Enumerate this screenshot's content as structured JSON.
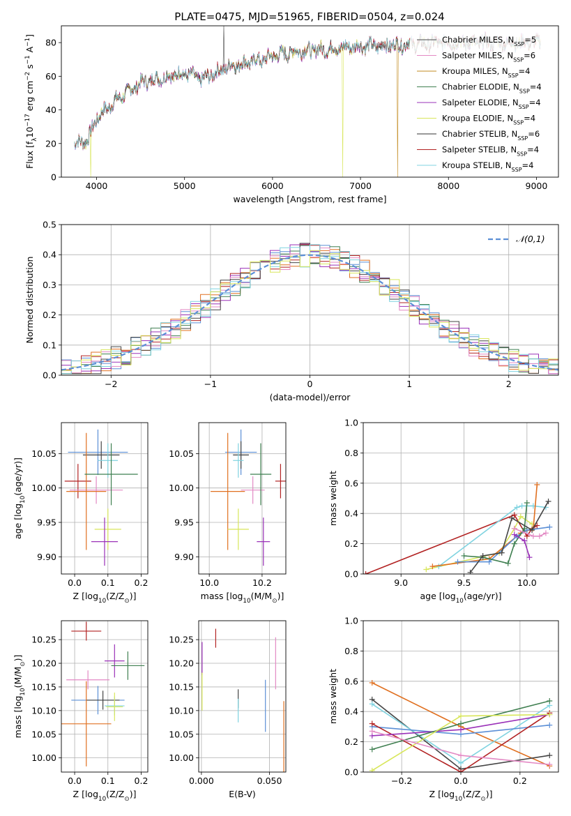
{
  "figure_title": "PLATE=0475, MJD=51965, FIBERID=0504, z=0.024",
  "colors": [
    "#4a4a4a",
    "#e389c4",
    "#c28a1f",
    "#3f7f50",
    "#9a30b8",
    "#d8e65a",
    "#333333",
    "#b22222",
    "#7fd3e0"
  ],
  "chart_data": [
    {
      "id": "spectrum",
      "type": "line",
      "title": "PLATE=0475, MJD=51965, FIBERID=0504, z=0.024",
      "xlabel": "wavelength [Angstrom, rest frame]",
      "ylabel_parts": [
        "Flux [f",
        "λ",
        "10",
        "−17",
        " erg cm",
        "−2",
        " s",
        "−1",
        " A",
        "−1",
        "]"
      ],
      "xlim": [
        3600,
        9250
      ],
      "ylim": [
        0,
        90
      ],
      "xticks": [
        4000,
        5000,
        6000,
        7000,
        8000,
        9000
      ],
      "yticks": [
        0,
        20,
        40,
        60,
        80
      ],
      "grid": false,
      "legend_position": "top-right",
      "series": [
        {
          "name": "Chabrier MILES",
          "nssp": "5",
          "color": "#4a4a4a"
        },
        {
          "name": "Salpeter MILES",
          "nssp": "6",
          "color": "#e389c4"
        },
        {
          "name": "Kroupa MILES",
          "nssp": "4",
          "color": "#c28a1f"
        },
        {
          "name": "Chabrier ELODIE",
          "nssp": "4",
          "color": "#3f7f50"
        },
        {
          "name": "Salpeter ELODIE",
          "nssp": "4",
          "color": "#9a30b8"
        },
        {
          "name": "Kroupa ELODIE",
          "nssp": "4",
          "color": "#d8e65a"
        },
        {
          "name": "Chabrier STELIB",
          "nssp": "6",
          "color": "#333333"
        },
        {
          "name": "Salpeter STELIB",
          "nssp": "4",
          "color": "#b22222"
        },
        {
          "name": "Kroupa STELIB",
          "nssp": "4",
          "color": "#7fd3e0"
        }
      ],
      "continuum_anchor_points": [
        [
          3750,
          20
        ],
        [
          3900,
          22
        ],
        [
          4000,
          35
        ],
        [
          4200,
          45
        ],
        [
          4500,
          56
        ],
        [
          4800,
          60
        ],
        [
          5000,
          62
        ],
        [
          5200,
          58
        ],
        [
          5500,
          66
        ],
        [
          5900,
          70
        ],
        [
          6000,
          72
        ],
        [
          6300,
          75
        ],
        [
          6600,
          76
        ],
        [
          7000,
          78
        ],
        [
          7200,
          78
        ],
        [
          7500,
          79
        ],
        [
          8000,
          80
        ],
        [
          8500,
          80
        ],
        [
          9000,
          80
        ]
      ],
      "dips": [
        [
          3934,
          1
        ],
        [
          5445,
          2
        ],
        [
          6800,
          3
        ],
        [
          7420,
          4
        ],
        [
          5175,
          5
        ],
        [
          5890,
          6
        ]
      ]
    },
    {
      "id": "residuals",
      "type": "histogram",
      "xlabel": "(data-model)/error",
      "ylabel": "Normed distribution",
      "xlim": [
        -2.5,
        2.5
      ],
      "ylim": [
        0,
        0.5
      ],
      "xticks": [
        -2,
        -1,
        0,
        1,
        2
      ],
      "yticks": [
        0.0,
        0.1,
        0.2,
        0.3,
        0.4,
        0.5
      ],
      "grid": true,
      "bin_width": 0.1,
      "reference_curve": {
        "name": "𝒩(0,1)",
        "mean": 0,
        "sigma": 1,
        "color": "#5b8fd6",
        "style": "dashed"
      },
      "legend_position": "top-right",
      "series_colors": [
        "#5b8fd6",
        "#e07020",
        "#3f7f50",
        "#b22222",
        "#9a30b8",
        "#e389c4",
        "#444444",
        "#7fd3e0",
        "#d8e65a"
      ]
    },
    {
      "id": "age_vs_Z",
      "type": "scatter",
      "xlabel_parts": [
        "Z [log",
        "10",
        "(Z/Z",
        "⊙",
        ")]"
      ],
      "ylabel_parts": [
        "age  [log",
        "10",
        "(age/yr)]"
      ],
      "xlim": [
        -0.04,
        0.22
      ],
      "ylim": [
        9.875,
        10.095
      ],
      "xticks": [
        0.0,
        0.1,
        0.2
      ],
      "yticks": [
        9.9,
        9.95,
        10.0,
        10.05
      ],
      "grid": true,
      "points": [
        {
          "x": 0.07,
          "y": 10.052,
          "xerr": 0.09,
          "yerr": 0.033,
          "color": "#5b8fd6"
        },
        {
          "x": 0.08,
          "y": 10.048,
          "xerr": 0.055,
          "yerr": 0.02,
          "color": "#444444"
        },
        {
          "x": 0.1,
          "y": 10.04,
          "xerr": 0.03,
          "yerr": 0.025,
          "color": "#7fd3e0"
        },
        {
          "x": 0.01,
          "y": 10.01,
          "xerr": 0.04,
          "yerr": 0.025,
          "color": "#b22222"
        },
        {
          "x": 0.065,
          "y": 9.997,
          "xerr": 0.08,
          "yerr": 0.02,
          "color": "#e389c4"
        },
        {
          "x": 0.035,
          "y": 9.995,
          "xerr": 0.06,
          "yerr": 0.085,
          "color": "#e07020"
        },
        {
          "x": 0.11,
          "y": 10.02,
          "xerr": 0.08,
          "yerr": 0.045,
          "color": "#3f7f50"
        },
        {
          "x": 0.1,
          "y": 9.94,
          "xerr": 0.04,
          "yerr": 0.03,
          "color": "#d8e65a"
        },
        {
          "x": 0.09,
          "y": 9.922,
          "xerr": 0.04,
          "yerr": 0.035,
          "color": "#9a30b8"
        }
      ]
    },
    {
      "id": "age_vs_mass",
      "type": "scatter",
      "xlabel_parts": [
        "mass [log",
        "10",
        "(M/M",
        "⊙",
        ")]"
      ],
      "xlim": [
        9.96,
        10.29
      ],
      "ylim": [
        9.875,
        10.095
      ],
      "xticks": [
        10.0,
        10.2
      ],
      "yticks": [
        9.9,
        9.95,
        10.0,
        10.05
      ],
      "grid": true,
      "points": [
        {
          "x": 10.12,
          "y": 10.052,
          "xerr": 0.06,
          "yerr": 0.033,
          "color": "#5b8fd6"
        },
        {
          "x": 10.12,
          "y": 10.048,
          "xerr": 0.03,
          "yerr": 0.02,
          "color": "#444444"
        },
        {
          "x": 10.11,
          "y": 10.04,
          "xerr": 0.02,
          "yerr": 0.025,
          "color": "#7fd3e0"
        },
        {
          "x": 10.27,
          "y": 10.01,
          "xerr": 0.02,
          "yerr": 0.025,
          "color": "#b22222"
        },
        {
          "x": 10.165,
          "y": 9.997,
          "xerr": 0.045,
          "yerr": 0.02,
          "color": "#e389c4"
        },
        {
          "x": 10.07,
          "y": 9.995,
          "xerr": 0.065,
          "yerr": 0.085,
          "color": "#e07020"
        },
        {
          "x": 10.195,
          "y": 10.02,
          "xerr": 0.04,
          "yerr": 0.045,
          "color": "#3f7f50"
        },
        {
          "x": 10.11,
          "y": 9.94,
          "xerr": 0.04,
          "yerr": 0.03,
          "color": "#d8e65a"
        },
        {
          "x": 10.205,
          "y": 9.922,
          "xerr": 0.025,
          "yerr": 0.035,
          "color": "#9a30b8"
        }
      ]
    },
    {
      "id": "weight_vs_age",
      "type": "line",
      "xlabel_parts": [
        "age  [log",
        "10",
        "(age/yr)]"
      ],
      "ylabel": "mass weight",
      "xlim": [
        8.7,
        10.25
      ],
      "ylim": [
        0,
        1.0
      ],
      "xticks": [
        9.0,
        9.5,
        10.0
      ],
      "yticks": [
        0.0,
        0.2,
        0.4,
        0.6,
        0.8,
        1.0
      ],
      "grid": true,
      "series": [
        {
          "color": "#b22222",
          "x": [
            8.72,
            9.9,
            10.0,
            10.04,
            10.08
          ],
          "y": [
            0.0,
            0.39,
            0.25,
            0.3,
            0.32
          ]
        },
        {
          "color": "#d8e65a",
          "x": [
            9.2,
            9.78,
            9.9,
            9.95,
            10.04
          ],
          "y": [
            0.03,
            0.14,
            0.3,
            0.38,
            0.33
          ]
        },
        {
          "color": "#7fd3e0",
          "x": [
            9.3,
            9.92,
            9.96,
            10.05,
            10.15
          ],
          "y": [
            0.05,
            0.44,
            0.45,
            0.45,
            0.44
          ]
        },
        {
          "color": "#e07020",
          "x": [
            9.25,
            9.7,
            9.95,
            10.05,
            10.08
          ],
          "y": [
            0.05,
            0.1,
            0.27,
            0.3,
            0.59
          ]
        },
        {
          "color": "#5b8fd6",
          "x": [
            9.45,
            9.7,
            9.92,
            10.0,
            10.18
          ],
          "y": [
            0.08,
            0.08,
            0.25,
            0.29,
            0.31
          ]
        },
        {
          "color": "#3f7f50",
          "x": [
            9.5,
            9.65,
            9.85,
            9.9,
            9.98,
            10.0
          ],
          "y": [
            0.12,
            0.11,
            0.07,
            0.2,
            0.3,
            0.47
          ]
        },
        {
          "color": "#444444",
          "x": [
            9.55,
            9.65,
            9.8,
            9.88,
            10.04,
            10.17
          ],
          "y": [
            0.01,
            0.12,
            0.14,
            0.37,
            0.29,
            0.48
          ]
        },
        {
          "color": "#9a30b8",
          "x": [
            9.9,
            9.98,
            10.02
          ],
          "y": [
            0.26,
            0.22,
            0.11
          ]
        },
        {
          "color": "#e389c4",
          "x": [
            9.9,
            10.05,
            10.1,
            10.15
          ],
          "y": [
            0.3,
            0.25,
            0.25,
            0.27
          ]
        }
      ]
    },
    {
      "id": "mass_vs_Z",
      "type": "scatter",
      "xlabel_parts": [
        "Z [log",
        "10",
        "(Z/Z",
        "⊙",
        ")]"
      ],
      "ylabel_parts": [
        "mass [log",
        "10",
        "(M/M",
        "⊙",
        ")]"
      ],
      "xlim": [
        -0.04,
        0.22
      ],
      "ylim": [
        9.97,
        10.29
      ],
      "xticks": [
        0.0,
        0.1,
        0.2
      ],
      "yticks": [
        10.0,
        10.05,
        10.1,
        10.15,
        10.2,
        10.25
      ],
      "grid": true,
      "points": [
        {
          "x": 0.035,
          "y": 10.268,
          "xerr": 0.045,
          "yerr": 0.02,
          "color": "#b22222"
        },
        {
          "x": 0.12,
          "y": 10.205,
          "xerr": 0.03,
          "yerr": 0.035,
          "color": "#9a30b8"
        },
        {
          "x": 0.16,
          "y": 10.195,
          "xerr": 0.05,
          "yerr": 0.03,
          "color": "#3f7f50"
        },
        {
          "x": 0.04,
          "y": 10.165,
          "xerr": 0.065,
          "yerr": 0.02,
          "color": "#e389c4"
        },
        {
          "x": 0.07,
          "y": 10.122,
          "xerr": 0.08,
          "yerr": 0.03,
          "color": "#5b8fd6"
        },
        {
          "x": 0.085,
          "y": 10.122,
          "xerr": 0.05,
          "yerr": 0.02,
          "color": "#444444"
        },
        {
          "x": 0.12,
          "y": 10.11,
          "xerr": 0.03,
          "yerr": 0.02,
          "color": "#7fd3e0"
        },
        {
          "x": 0.12,
          "y": 10.108,
          "xerr": 0.025,
          "yerr": 0.03,
          "color": "#d8e65a"
        },
        {
          "x": 0.035,
          "y": 10.072,
          "xerr": 0.075,
          "yerr": 0.09,
          "color": "#e07020"
        }
      ]
    },
    {
      "id": "mass_vs_EBV",
      "type": "scatter",
      "xlabel": "E(B-V)",
      "xlim": [
        -0.002,
        0.062
      ],
      "ylim": [
        9.97,
        10.29
      ],
      "xticks": [
        0.0,
        0.05
      ],
      "yticks": [
        10.0,
        10.05,
        10.1,
        10.15,
        10.2,
        10.25
      ],
      "grid": true,
      "points": [
        {
          "x": 0.0105,
          "y": 10.253,
          "yerr": 0.02,
          "color": "#b22222"
        },
        {
          "x": 0.0005,
          "y": 10.21,
          "yerr": 0.035,
          "color": "#9a30b8"
        },
        {
          "x": 0.0005,
          "y": 10.14,
          "yerr": 0.04,
          "color": "#d8e65a"
        },
        {
          "x": 0.027,
          "y": 10.125,
          "yerr": 0.02,
          "color": "#444444"
        },
        {
          "x": 0.027,
          "y": 10.1,
          "yerr": 0.025,
          "color": "#7fd3e0"
        },
        {
          "x": 0.047,
          "y": 10.11,
          "yerr": 0.055,
          "color": "#5b8fd6"
        },
        {
          "x": 0.0545,
          "y": 10.2,
          "yerr": 0.055,
          "color": "#e389c4"
        },
        {
          "x": 0.0605,
          "y": 10.045,
          "yerr": 0.075,
          "color": "#e07020"
        }
      ]
    },
    {
      "id": "weight_vs_Z",
      "type": "line",
      "xlabel_parts": [
        "Z [log",
        "10",
        "(Z/Z",
        "⊙",
        ")]"
      ],
      "ylabel": "mass weight",
      "xlim": [
        -0.33,
        0.33
      ],
      "ylim": [
        0,
        1.0
      ],
      "xticks": [
        -0.2,
        0.0,
        0.2
      ],
      "yticks": [
        0.0,
        0.2,
        0.4,
        0.6,
        0.8,
        1.0
      ],
      "grid": true,
      "series": [
        {
          "color": "#e07020",
          "x": [
            -0.3,
            0.0,
            0.3
          ],
          "y": [
            0.59,
            0.3,
            0.04
          ]
        },
        {
          "color": "#444444",
          "x": [
            -0.3,
            0.0,
            0.3
          ],
          "y": [
            0.48,
            0.02,
            0.11
          ]
        },
        {
          "color": "#7fd3e0",
          "x": [
            -0.3,
            0.0,
            0.3
          ],
          "y": [
            0.45,
            0.06,
            0.44
          ]
        },
        {
          "color": "#5b8fd6",
          "x": [
            -0.3,
            0.0,
            0.3
          ],
          "y": [
            0.3,
            0.25,
            0.31
          ]
        },
        {
          "color": "#b22222",
          "x": [
            -0.3,
            0.0,
            0.3
          ],
          "y": [
            0.32,
            0.0,
            0.39
          ]
        },
        {
          "color": "#9a30b8",
          "x": [
            -0.3,
            0.0,
            0.3
          ],
          "y": [
            0.24,
            0.28,
            0.38
          ]
        },
        {
          "color": "#3f7f50",
          "x": [
            -0.3,
            0.0,
            0.3
          ],
          "y": [
            0.15,
            0.32,
            0.47
          ]
        },
        {
          "color": "#d8e65a",
          "x": [
            -0.3,
            0.0,
            0.3
          ],
          "y": [
            0.01,
            0.37,
            0.38
          ]
        },
        {
          "color": "#e389c4",
          "x": [
            -0.3,
            0.0,
            0.3
          ],
          "y": [
            0.27,
            0.11,
            0.05
          ]
        }
      ]
    }
  ]
}
